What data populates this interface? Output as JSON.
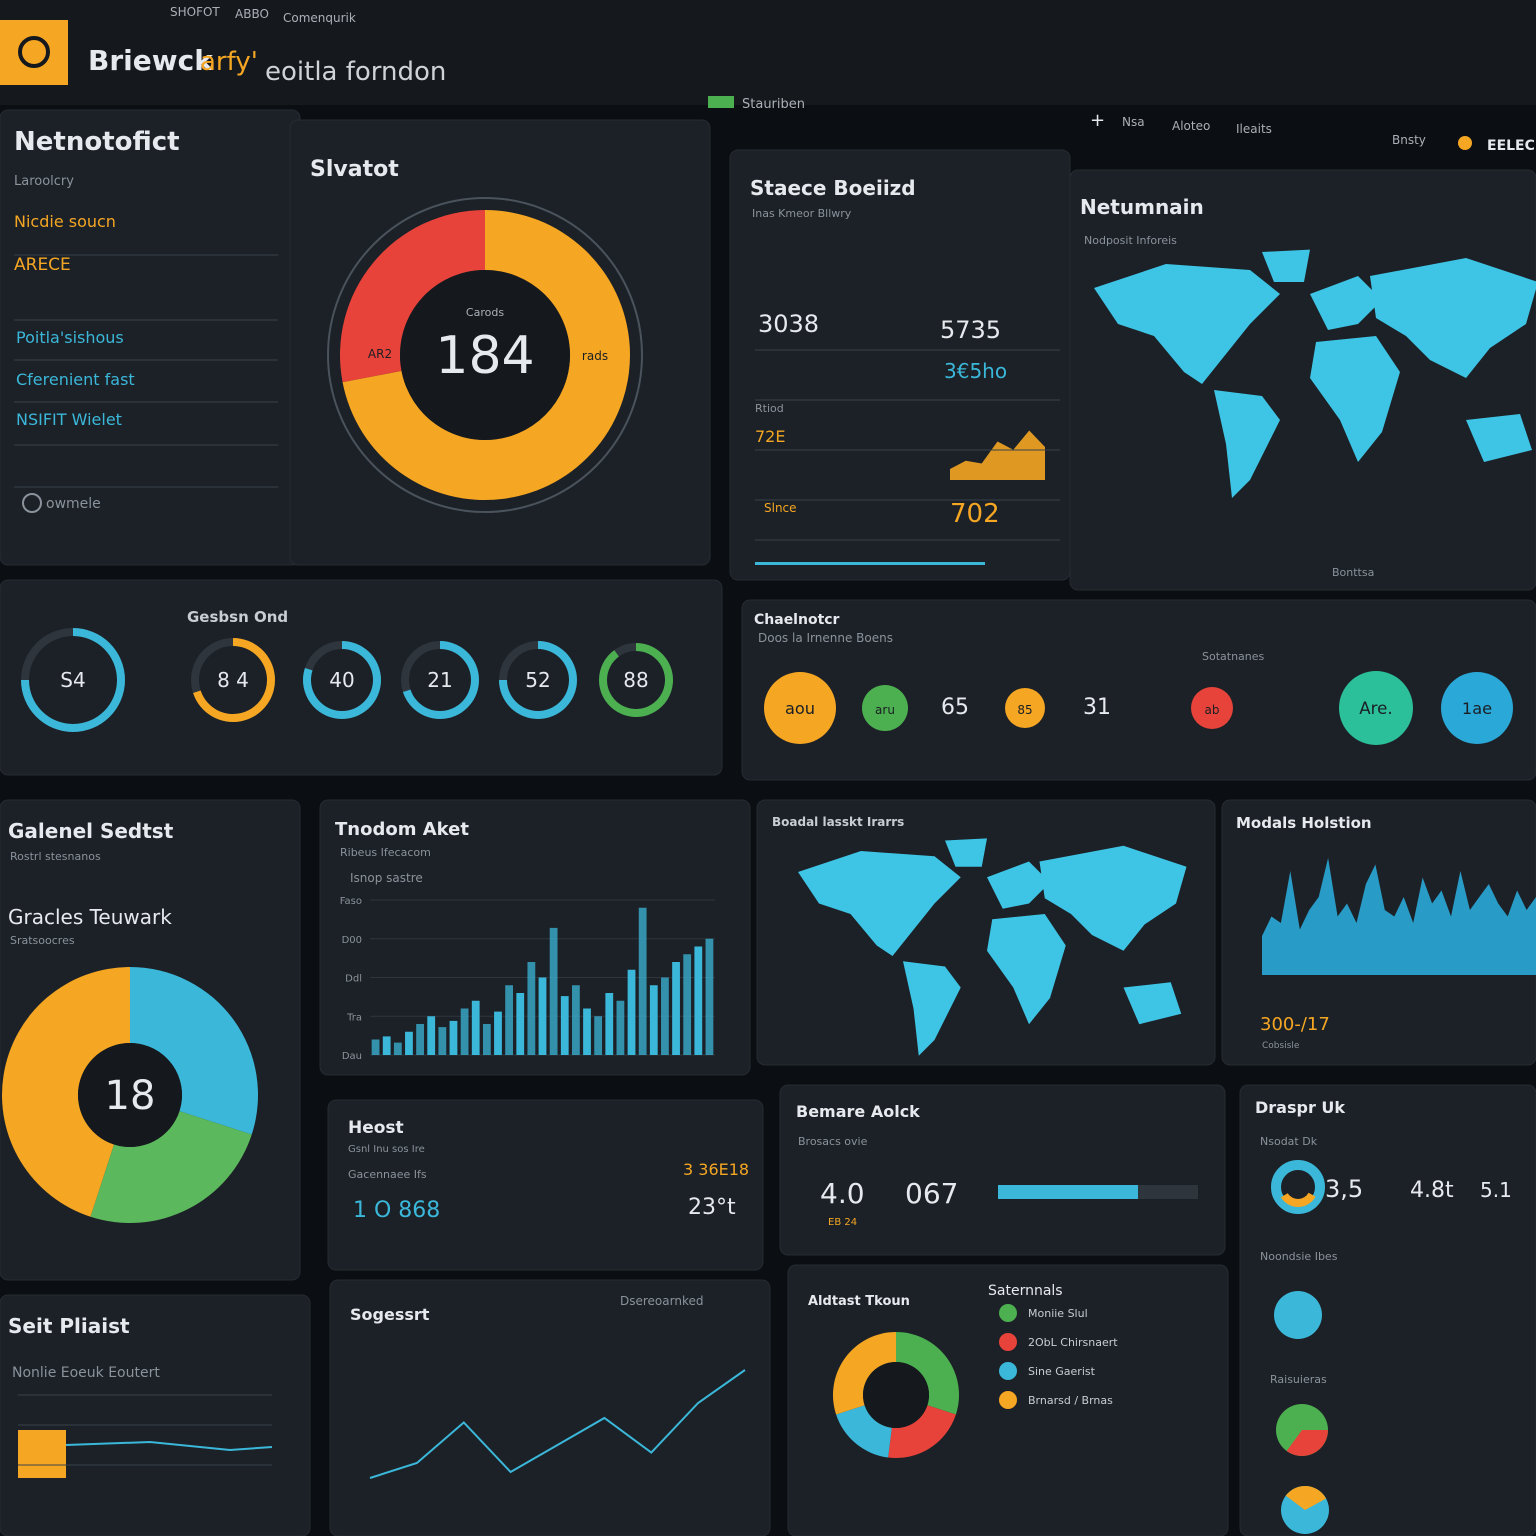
{
  "header": {
    "logo": "Briewck",
    "title_a": "arfy'",
    "title_b": "eoitla forndon",
    "top_links": [
      "SHOFOT",
      "ABBO",
      "Comenqurik"
    ],
    "status": "Stauriben",
    "nav": [
      "Nsa",
      "Aloteo",
      "Ileaits",
      "Bnsty",
      "EELEC"
    ]
  },
  "panels": [
    {
      "title": "Netnotofict",
      "texts": [
        "Laroolcry",
        "Nicdie soucn",
        "ARECE",
        "Poitla'sishous",
        "Cferenient fast",
        "NSIFIT Wielet",
        "owmele"
      ]
    },
    {
      "title": "Slvatot",
      "texts": [],
      "chart": {
        "type": "donut",
        "center": 184,
        "center_label": "Carods",
        "segments": [
          {
            "name": "rads",
            "value": 72,
            "color": "#f5a623"
          },
          {
            "name": "AR2",
            "value": 28,
            "color": "#e8433a"
          }
        ]
      }
    },
    {
      "title": "Staece Boeiizd",
      "texts": [
        "Inas Kmeor Bllwry",
        "3038",
        "5735",
        "3€5ho",
        "72E",
        "702",
        "Rtiod",
        "Slnce"
      ],
      "chart": {
        "type": "area",
        "values": [
          20,
          35,
          30,
          70,
          55,
          90,
          60
        ],
        "ylim": [
          0,
          100
        ],
        "color": "#f5a623"
      }
    },
    {
      "title": "Netumnain",
      "texts": [
        "Nodposit Inforeis",
        "Bonttsa"
      ],
      "chart": {
        "type": "map",
        "color": "#3ec5e6"
      }
    },
    {
      "title": "Gesbsn Ond",
      "texts": [],
      "chart": {
        "type": "gauges",
        "gauges": [
          {
            "text": "S4",
            "percent": 75,
            "color": "#3bb7d9"
          },
          {
            "text": "8 4",
            "percent": 70,
            "color": "#f5a623"
          },
          {
            "text": "40",
            "percent": 80,
            "color": "#3bb7d9"
          },
          {
            "text": "21",
            "percent": 70,
            "color": "#3bb7d9"
          },
          {
            "text": "52",
            "percent": 75,
            "color": "#3bb7d9"
          },
          {
            "text": "88",
            "percent": 90,
            "color": "#4caf50"
          }
        ]
      }
    },
    {
      "title": "Chaelnotcr",
      "texts": [
        "Doos la Irnenne Boens",
        "Sotatnanes"
      ],
      "chart": {
        "type": "circles",
        "circles": [
          {
            "text": "aou",
            "color": "#f5a623"
          },
          {
            "text": "aru",
            "color": "#4caf50"
          },
          {
            "text": "65",
            "color": "none"
          },
          {
            "text": "85",
            "color": "#f5a623"
          },
          {
            "text": "31",
            "color": "none"
          },
          {
            "text": "ab",
            "color": "#e8433a"
          },
          {
            "text": "Are.",
            "color": "#2bbf9a"
          },
          {
            "text": "1ae",
            "color": "#2aa8d8"
          }
        ]
      }
    },
    {
      "title": "Galenel Sedtst",
      "texts": [
        "Rostrl stesnanos",
        "Gracles Teuwark",
        "Sratsoocres"
      ],
      "chart": {
        "type": "donut",
        "center": 18,
        "segments": [
          {
            "value": 30,
            "color": "#3bb7d9"
          },
          {
            "value": 25,
            "color": "#5cb85c"
          },
          {
            "value": 45,
            "color": "#f5a623"
          }
        ]
      }
    },
    {
      "title": "Tnodom Aket",
      "texts": [
        "Ribeus Ifecacom",
        "Isnop sastre"
      ],
      "chart": {
        "type": "bar",
        "color": "#3bb7d9",
        "ylim": [
          0,
          100
        ],
        "yticks": [
          {
            "value": 0,
            "label": "Dau"
          },
          {
            "value": 25,
            "label": "Tra"
          },
          {
            "value": 50,
            "label": "Ddl"
          },
          {
            "value": 75,
            "label": "D00"
          },
          {
            "value": 100,
            "label": "Faso"
          }
        ],
        "values": [
          10,
          12,
          8,
          15,
          20,
          25,
          18,
          22,
          30,
          35,
          20,
          28,
          45,
          40,
          60,
          50,
          82,
          38,
          45,
          30,
          25,
          40,
          35,
          55,
          95,
          45,
          50,
          60,
          65,
          70,
          75
        ]
      }
    },
    {
      "title": "Boadal lasskt Irarrs",
      "texts": [],
      "chart": {
        "type": "map",
        "color": "#3ec5e6"
      }
    },
    {
      "title": "Modals Holstion",
      "texts": [
        "300-/17",
        "Cobsisle"
      ],
      "chart": {
        "type": "area",
        "color": "#2aa8d8",
        "ylim": [
          0,
          100
        ],
        "values": [
          30,
          45,
          40,
          80,
          35,
          50,
          60,
          90,
          45,
          55,
          40,
          70,
          85,
          50,
          45,
          60,
          40,
          75,
          55,
          65,
          45,
          80,
          50,
          60,
          70,
          55,
          45,
          65,
          50,
          60
        ]
      }
    },
    {
      "title": "Heost",
      "texts": [
        "Gsnl Inu sos Ire",
        "Gacennaee Ifs",
        "3 36E18",
        "1 O 868",
        "23°t"
      ]
    },
    {
      "title": "Bemare Aolck",
      "texts": [
        "Brosacs ovie",
        "4.0",
        "067",
        "EB 24"
      ],
      "chart": {
        "type": "progress",
        "percent": 70,
        "color": "#3bb7d9"
      }
    },
    {
      "title": "Draspr Uk",
      "texts": [
        "Nsodat Dk",
        "3,5",
        "4.8t",
        "5.1",
        "Noondsie Ibes",
        "Raisuieras"
      ]
    },
    {
      "title": "Seit Pliaist",
      "texts": [
        "Nonlie Eoeuk Eoutert"
      ]
    },
    {
      "title": "Sogessrt",
      "texts": [
        "Dsereoarnked"
      ],
      "chart": {
        "type": "line",
        "color": "#3bb7d9",
        "ylim": [
          0,
          100
        ],
        "values": [
          8,
          18,
          45,
          12,
          30,
          48,
          25,
          58,
          80
        ]
      }
    },
    {
      "title": "Aldtast Tkoun",
      "texts": [
        "Saternnals"
      ],
      "chart": {
        "type": "donut",
        "segments": [
          {
            "name": "Moniie Slul",
            "value": 30,
            "color": "#4caf50"
          },
          {
            "name": "2ObL Chirsnaert",
            "value": 22,
            "color": "#e8433a"
          },
          {
            "name": "Sine Gaerist",
            "value": 18,
            "color": "#3bb7d9"
          },
          {
            "name": "Brnarsd / Brnas",
            "value": 30,
            "color": "#f5a623"
          }
        ]
      }
    }
  ]
}
